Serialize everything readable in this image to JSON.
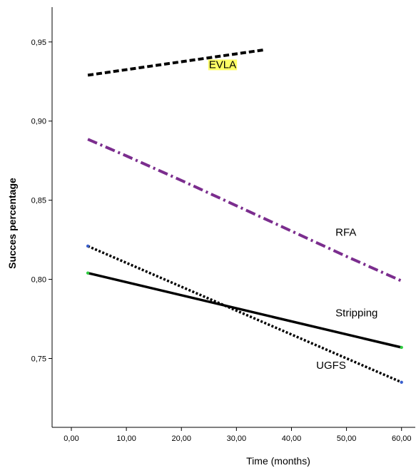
{
  "chart_data": {
    "type": "line",
    "title": "",
    "xlabel": "Time (months)",
    "ylabel": "Succes percentage",
    "xlim": [
      -3.5,
      62.5
    ],
    "ylim": [
      0.7065,
      0.972
    ],
    "x_ticks": [
      0,
      10,
      20,
      30,
      40,
      50,
      60
    ],
    "x_tick_labels": [
      "0,00",
      "10,00",
      "20,00",
      "30,00",
      "40,00",
      "50,00",
      "60,00"
    ],
    "y_ticks": [
      0.75,
      0.8,
      0.85,
      0.9,
      0.95
    ],
    "y_tick_labels": [
      "0,75",
      "0,80",
      "0,85",
      "0,90",
      "0,95"
    ],
    "grid": false,
    "legend": "none",
    "series": [
      {
        "name": "EVLA",
        "x": [
          3,
          35
        ],
        "values": [
          0.929,
          0.945
        ],
        "color": "#000000",
        "style": "dashed",
        "label_x": 25,
        "label_y": 0.9335,
        "label_highlight": "#ffff66"
      },
      {
        "name": "RFA",
        "x": [
          3,
          10,
          20,
          30,
          40,
          50,
          60
        ],
        "values": [
          0.8885,
          0.878,
          0.8625,
          0.8465,
          0.8305,
          0.8145,
          0.799
        ],
        "color": "#7b2d8e",
        "style": "dash-dot",
        "label_x": 48,
        "label_y": 0.8275
      },
      {
        "name": "Stripping",
        "x": [
          3,
          60
        ],
        "values": [
          0.804,
          0.757
        ],
        "color": "#000000",
        "style": "solid",
        "marker_color": "#2ecc40",
        "label_x": 48,
        "label_y": 0.7765
      },
      {
        "name": "UGFS",
        "x": [
          3,
          60
        ],
        "values": [
          0.821,
          0.735
        ],
        "color": "#000000",
        "style": "dotted",
        "marker_color": "#3a5fcd",
        "label_x": 44.5,
        "label_y": 0.7435
      }
    ]
  }
}
